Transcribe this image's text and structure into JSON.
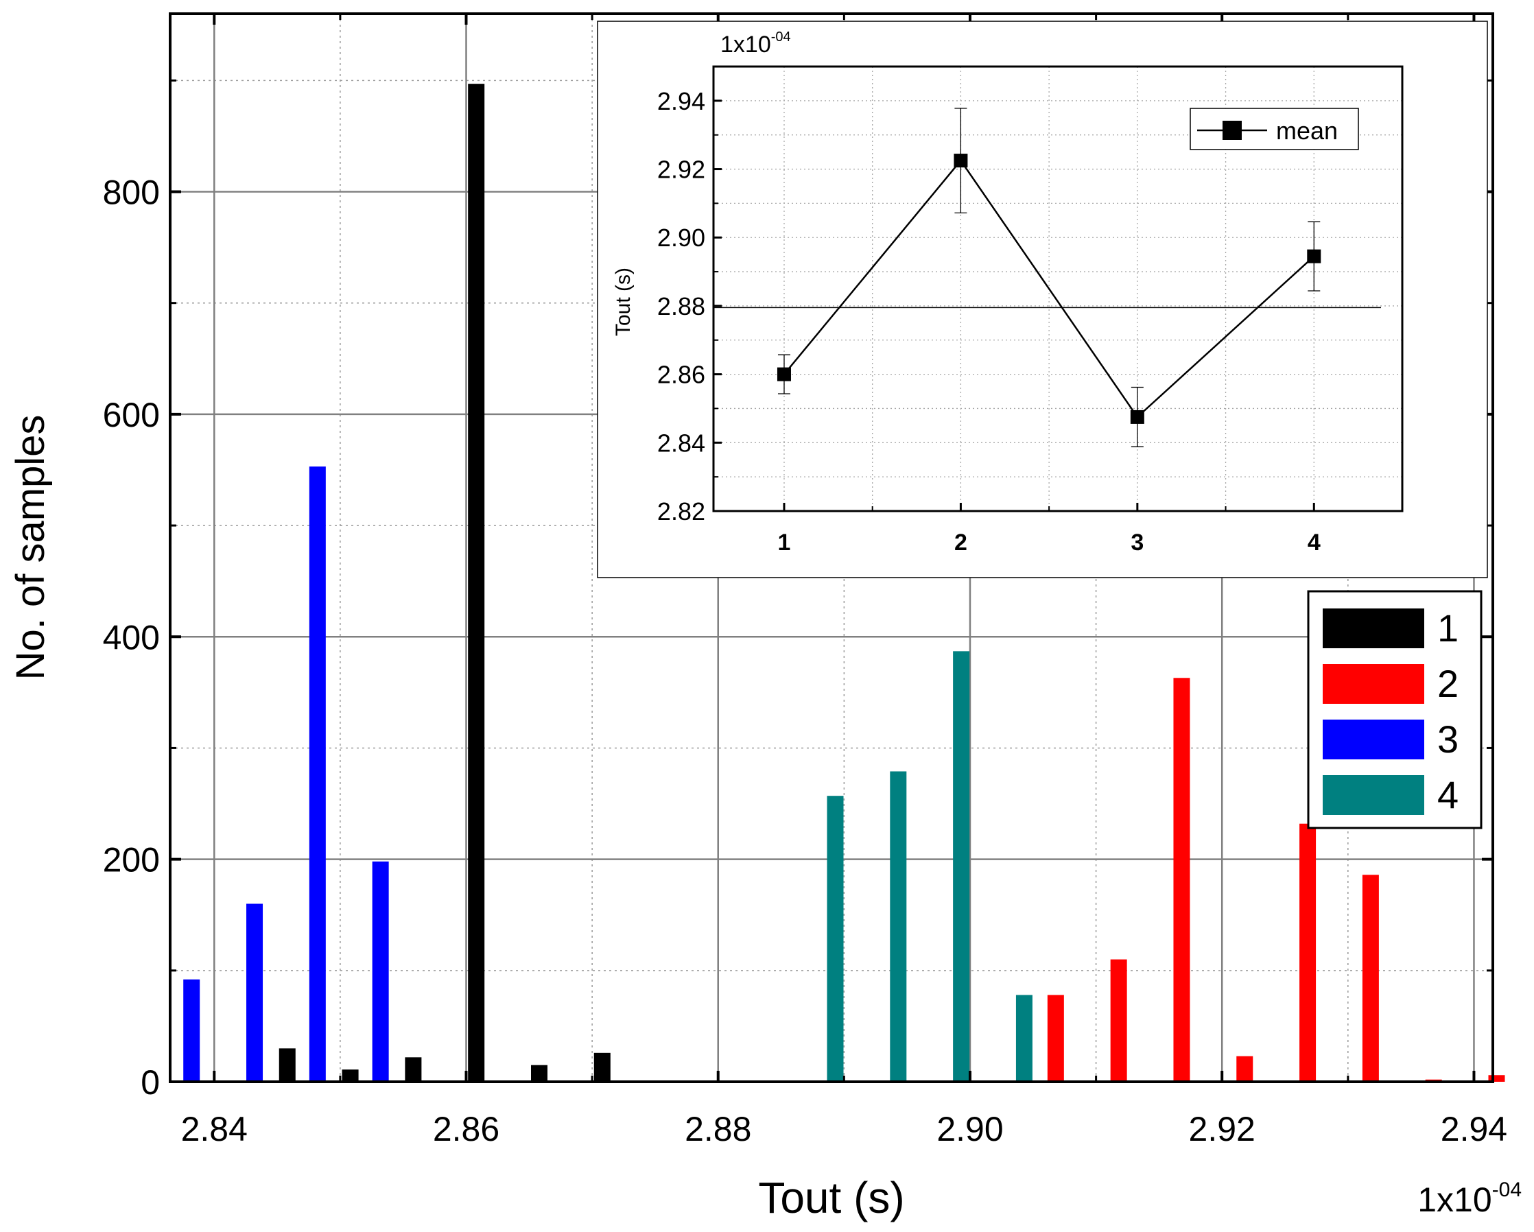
{
  "chart_data": [
    {
      "type": "bar",
      "title": "",
      "xlabel": "Tout (s)",
      "ylabel": "No. of samples",
      "x_multiplier_label": "1x10",
      "x_multiplier_exp": "-04",
      "xlim": [
        2.8365,
        2.9415
      ],
      "ylim": [
        0,
        960
      ],
      "x_ticks": [
        "2.84",
        "2.86",
        "2.88",
        "2.90",
        "2.92",
        "2.94"
      ],
      "x_tick_values": [
        2.84,
        2.86,
        2.88,
        2.9,
        2.92,
        2.94
      ],
      "y_ticks": [
        "0",
        "200",
        "400",
        "600",
        "800"
      ],
      "y_tick_values": [
        0,
        200,
        400,
        600,
        800
      ],
      "grid": true,
      "legend_position": "right-middle",
      "series": [
        {
          "name": "1",
          "color": "#000000",
          "x": [
            2.8458,
            2.8508,
            2.8558,
            2.8608,
            2.8658,
            2.8708
          ],
          "values": [
            30,
            11,
            22,
            897,
            15,
            26
          ]
        },
        {
          "name": "2",
          "color": "#ff0000",
          "x": [
            2.9068,
            2.9118,
            2.9168,
            2.9218,
            2.9268,
            2.9318,
            2.9368,
            2.9418
          ],
          "values": [
            78,
            110,
            363,
            23,
            232,
            186,
            2,
            6
          ]
        },
        {
          "name": "3",
          "color": "#0000ff",
          "x": [
            2.8382,
            2.8432,
            2.8482,
            2.8532
          ],
          "values": [
            92,
            160,
            553,
            198
          ]
        },
        {
          "name": "4",
          "color": "#008080",
          "x": [
            2.8893,
            2.8943,
            2.8993,
            2.9043
          ],
          "values": [
            257,
            279,
            387,
            78
          ]
        }
      ]
    },
    {
      "type": "line",
      "title": "",
      "xlabel": "",
      "ylabel": "Tout (s)",
      "y_multiplier_label": "1x10",
      "y_multiplier_exp": "-04",
      "xlim": [
        0.6,
        4.5
      ],
      "ylim": [
        2.82,
        2.95
      ],
      "x_ticks": [
        "1",
        "2",
        "3",
        "4"
      ],
      "x_tick_values": [
        1,
        2,
        3,
        4
      ],
      "y_ticks": [
        "2.82",
        "2.84",
        "2.86",
        "2.88",
        "2.90",
        "2.92",
        "2.94"
      ],
      "y_tick_values": [
        2.82,
        2.84,
        2.86,
        2.88,
        2.9,
        2.92,
        2.94
      ],
      "grid": true,
      "legend_position": "top-right",
      "reference_line": 2.8795,
      "series": [
        {
          "name": "mean",
          "color": "#000000",
          "x": [
            1,
            2,
            3,
            4
          ],
          "values": [
            2.86,
            2.9225,
            2.8475,
            2.8945
          ],
          "error": [
            0.0057,
            0.0153,
            0.0087,
            0.0101
          ]
        }
      ]
    }
  ]
}
